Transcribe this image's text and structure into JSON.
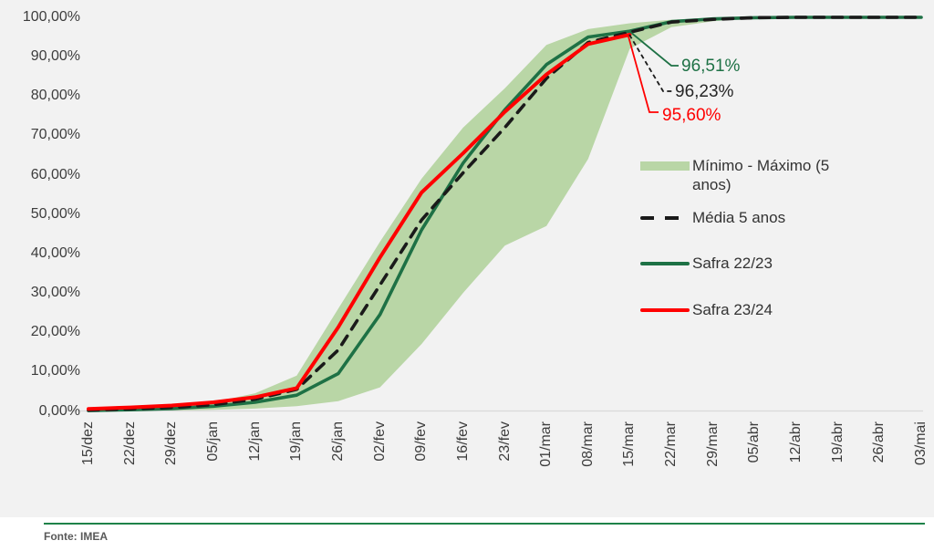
{
  "colors": {
    "background": "#f2f2f2",
    "band": "#b9d6a6",
    "media_line": "#1a1a1a",
    "safra_22_23": "#1e7145",
    "safra_23_24": "#ff0000",
    "axis_line": "#d9d9d9",
    "tick_text": "#3d3d3d",
    "annotation_black": "#262626",
    "footer_divider": "#1e8249",
    "footer_text": "#595959"
  },
  "chart_data": {
    "type": "line",
    "title": "",
    "xlabel": "",
    "ylabel": "",
    "ylim": [
      0,
      100
    ],
    "y_tick_step": 10,
    "grid": "none",
    "legend_position": "middle-right",
    "y_tick_labels": [
      "0,00%",
      "10,00%",
      "20,00%",
      "30,00%",
      "40,00%",
      "50,00%",
      "60,00%",
      "70,00%",
      "80,00%",
      "90,00%",
      "100,00%"
    ],
    "categories": [
      "15/dez",
      "22/dez",
      "29/dez",
      "05/jan",
      "12/jan",
      "19/jan",
      "26/jan",
      "02/fev",
      "09/fev",
      "16/fev",
      "23/fev",
      "01/mar",
      "08/mar",
      "15/mar",
      "22/mar",
      "29/mar",
      "05/abr",
      "12/abr",
      "19/abr",
      "26/abr",
      "03/mai"
    ],
    "series": [
      {
        "name": "Mínimo - Máximo (5 anos)",
        "type": "band",
        "color": "#b9d6a6",
        "min": [
          0,
          0,
          0.1,
          0.3,
          0.6,
          1.2,
          2.5,
          6,
          17,
          30,
          42,
          47,
          64,
          92,
          97.5,
          99,
          99.8,
          100,
          100,
          100,
          100
        ],
        "max": [
          0.3,
          0.7,
          1.3,
          2.2,
          4.5,
          9,
          26,
          43,
          59,
          72,
          82,
          93,
          97,
          98.5,
          99.4,
          99.8,
          100,
          100,
          100,
          100,
          100
        ]
      },
      {
        "name": "Média 5 anos",
        "type": "line",
        "style": "dashed",
        "color": "#1a1a1a",
        "values": [
          0.2,
          0.5,
          0.9,
          1.6,
          3,
          5.5,
          15.5,
          32,
          48.5,
          60.5,
          72,
          84.5,
          93.6,
          96.23,
          98.8,
          99.5,
          99.9,
          100,
          100,
          100,
          100
        ]
      },
      {
        "name": "Safra 22/23",
        "type": "line",
        "style": "solid",
        "color": "#1e7145",
        "values": [
          0.1,
          0.3,
          0.6,
          1.2,
          2.2,
          4,
          9.5,
          24.5,
          46,
          63,
          76.5,
          88,
          95,
          96.51,
          98.9,
          99.6,
          99.9,
          100,
          100,
          100,
          100
        ]
      },
      {
        "name": "Safra 23/24",
        "type": "line",
        "style": "solid",
        "color": "#ff0000",
        "values": [
          0.5,
          0.9,
          1.4,
          2.2,
          3.5,
          5.8,
          21.3,
          39,
          55.5,
          65.5,
          76,
          85.5,
          93.2,
          95.6
        ]
      }
    ],
    "end_labels": [
      {
        "series": "Safra 22/23",
        "label": "96,51%",
        "color": "#1e7145"
      },
      {
        "series": "Média 5 anos",
        "label": "96,23%",
        "color": "#262626"
      },
      {
        "series": "Safra 23/24",
        "label": "95,60%",
        "color": "#ff0000"
      }
    ]
  },
  "legend": {
    "items": [
      {
        "label": "Mínimo - Máximo (5 anos)"
      },
      {
        "label": "Média 5 anos"
      },
      {
        "label": "Safra 22/23"
      },
      {
        "label": "Safra 23/24"
      }
    ]
  },
  "footer": {
    "source": "Fonte: IMEA"
  }
}
